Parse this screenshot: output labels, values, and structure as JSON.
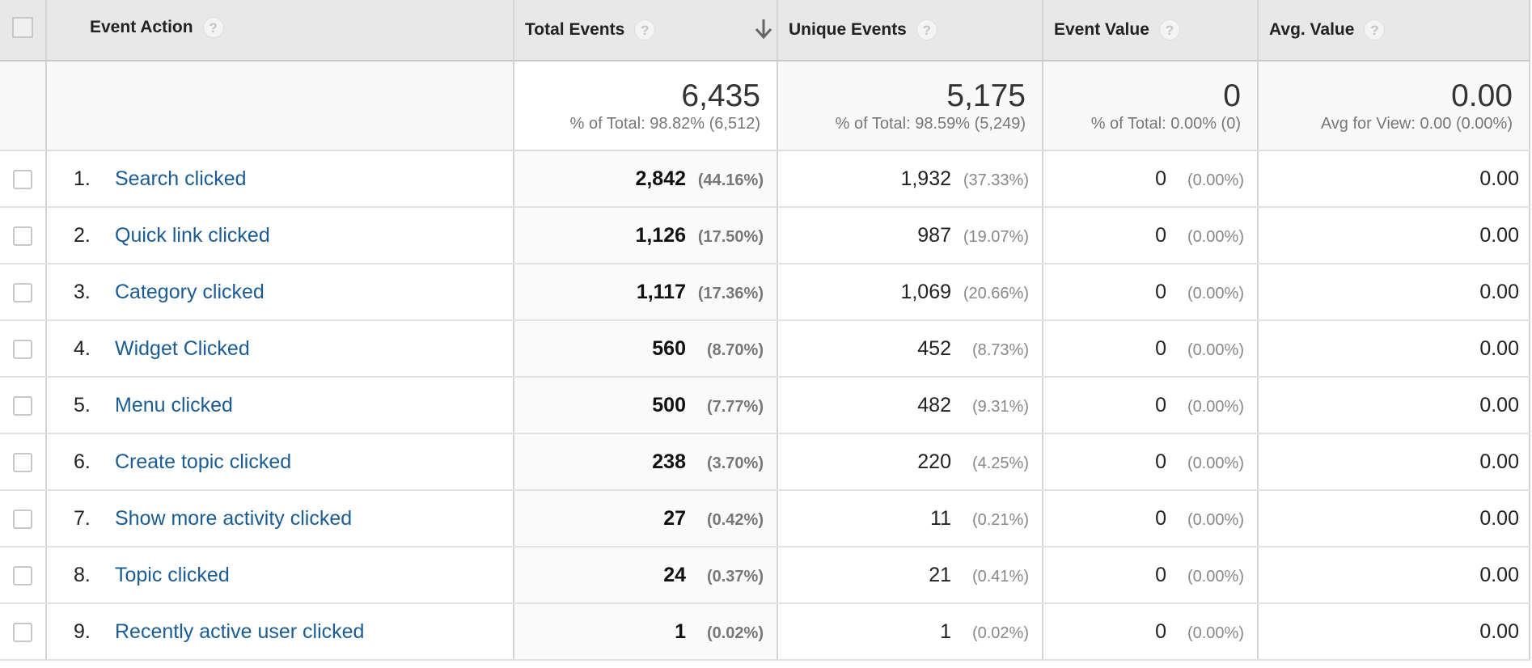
{
  "columns": {
    "event_action": "Event Action",
    "total_events": "Total Events",
    "unique_events": "Unique Events",
    "event_value": "Event Value",
    "avg_value": "Avg. Value",
    "help_glyph": "?",
    "sorted_column": "Total Events",
    "sort_direction": "descending"
  },
  "totals": {
    "total_events": {
      "value": "6,435",
      "sub": "% of Total: 98.82% (6,512)"
    },
    "unique_events": {
      "value": "5,175",
      "sub": "% of Total: 98.59% (5,249)"
    },
    "event_value": {
      "value": "0",
      "sub": "% of Total: 0.00% (0)"
    },
    "avg_value": {
      "value": "0.00",
      "sub": "Avg for View: 0.00 (0.00%)"
    }
  },
  "rows": [
    {
      "index": "1.",
      "action": "Search clicked",
      "total": "2,842",
      "total_pct": "(44.16%)",
      "unique": "1,932",
      "unique_pct": "(37.33%)",
      "value": "0",
      "value_pct": "(0.00%)",
      "avg": "0.00"
    },
    {
      "index": "2.",
      "action": "Quick link clicked",
      "total": "1,126",
      "total_pct": "(17.50%)",
      "unique": "987",
      "unique_pct": "(19.07%)",
      "value": "0",
      "value_pct": "(0.00%)",
      "avg": "0.00"
    },
    {
      "index": "3.",
      "action": "Category clicked",
      "total": "1,117",
      "total_pct": "(17.36%)",
      "unique": "1,069",
      "unique_pct": "(20.66%)",
      "value": "0",
      "value_pct": "(0.00%)",
      "avg": "0.00"
    },
    {
      "index": "4.",
      "action": "Widget Clicked",
      "total": "560",
      "total_pct": "(8.70%)",
      "unique": "452",
      "unique_pct": "(8.73%)",
      "value": "0",
      "value_pct": "(0.00%)",
      "avg": "0.00"
    },
    {
      "index": "5.",
      "action": "Menu clicked",
      "total": "500",
      "total_pct": "(7.77%)",
      "unique": "482",
      "unique_pct": "(9.31%)",
      "value": "0",
      "value_pct": "(0.00%)",
      "avg": "0.00"
    },
    {
      "index": "6.",
      "action": "Create topic clicked",
      "total": "238",
      "total_pct": "(3.70%)",
      "unique": "220",
      "unique_pct": "(4.25%)",
      "value": "0",
      "value_pct": "(0.00%)",
      "avg": "0.00"
    },
    {
      "index": "7.",
      "action": "Show more activity clicked",
      "total": "27",
      "total_pct": "(0.42%)",
      "unique": "11",
      "unique_pct": "(0.21%)",
      "value": "0",
      "value_pct": "(0.00%)",
      "avg": "0.00"
    },
    {
      "index": "8.",
      "action": "Topic clicked",
      "total": "24",
      "total_pct": "(0.37%)",
      "unique": "21",
      "unique_pct": "(0.41%)",
      "value": "0",
      "value_pct": "(0.00%)",
      "avg": "0.00"
    },
    {
      "index": "9.",
      "action": "Recently active user clicked",
      "total": "1",
      "total_pct": "(0.02%)",
      "unique": "1",
      "unique_pct": "(0.02%)",
      "value": "0",
      "value_pct": "(0.00%)",
      "avg": "0.00"
    }
  ],
  "colors": {
    "header_bg": "#e8e8e8",
    "link": "#1a5c93",
    "muted_text": "#777777"
  }
}
